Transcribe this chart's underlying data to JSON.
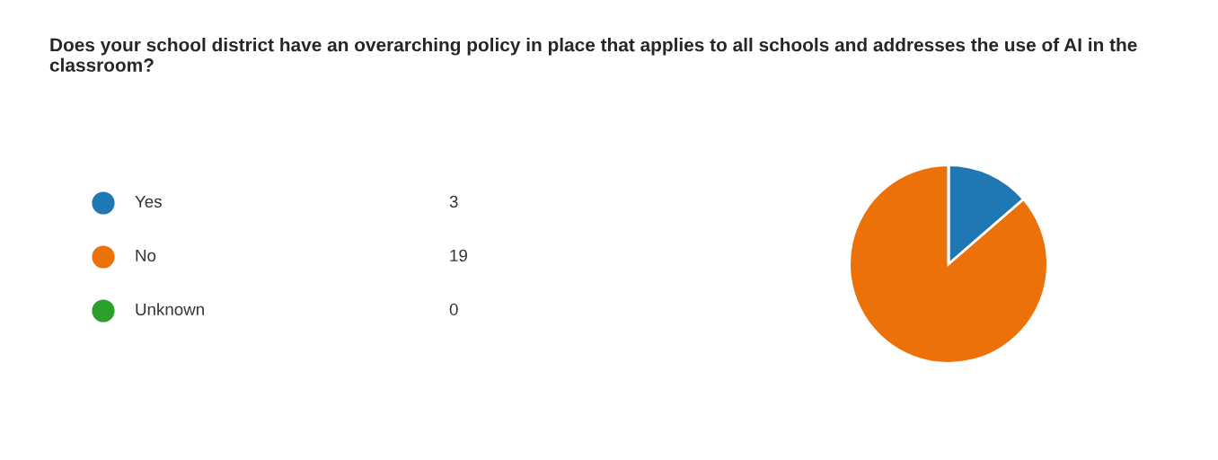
{
  "chart_data": {
    "type": "pie",
    "title": "Does your school district have an overarching policy in place that applies to all schools and addresses the use of AI in the classroom?",
    "categories": [
      "Yes",
      "No",
      "Unknown"
    ],
    "values": [
      3,
      19,
      0
    ],
    "colors": [
      "#1f78b4",
      "#eb7108",
      "#2ca02c"
    ],
    "value_labels": [
      "3",
      "19",
      "0"
    ],
    "legend": "left"
  }
}
